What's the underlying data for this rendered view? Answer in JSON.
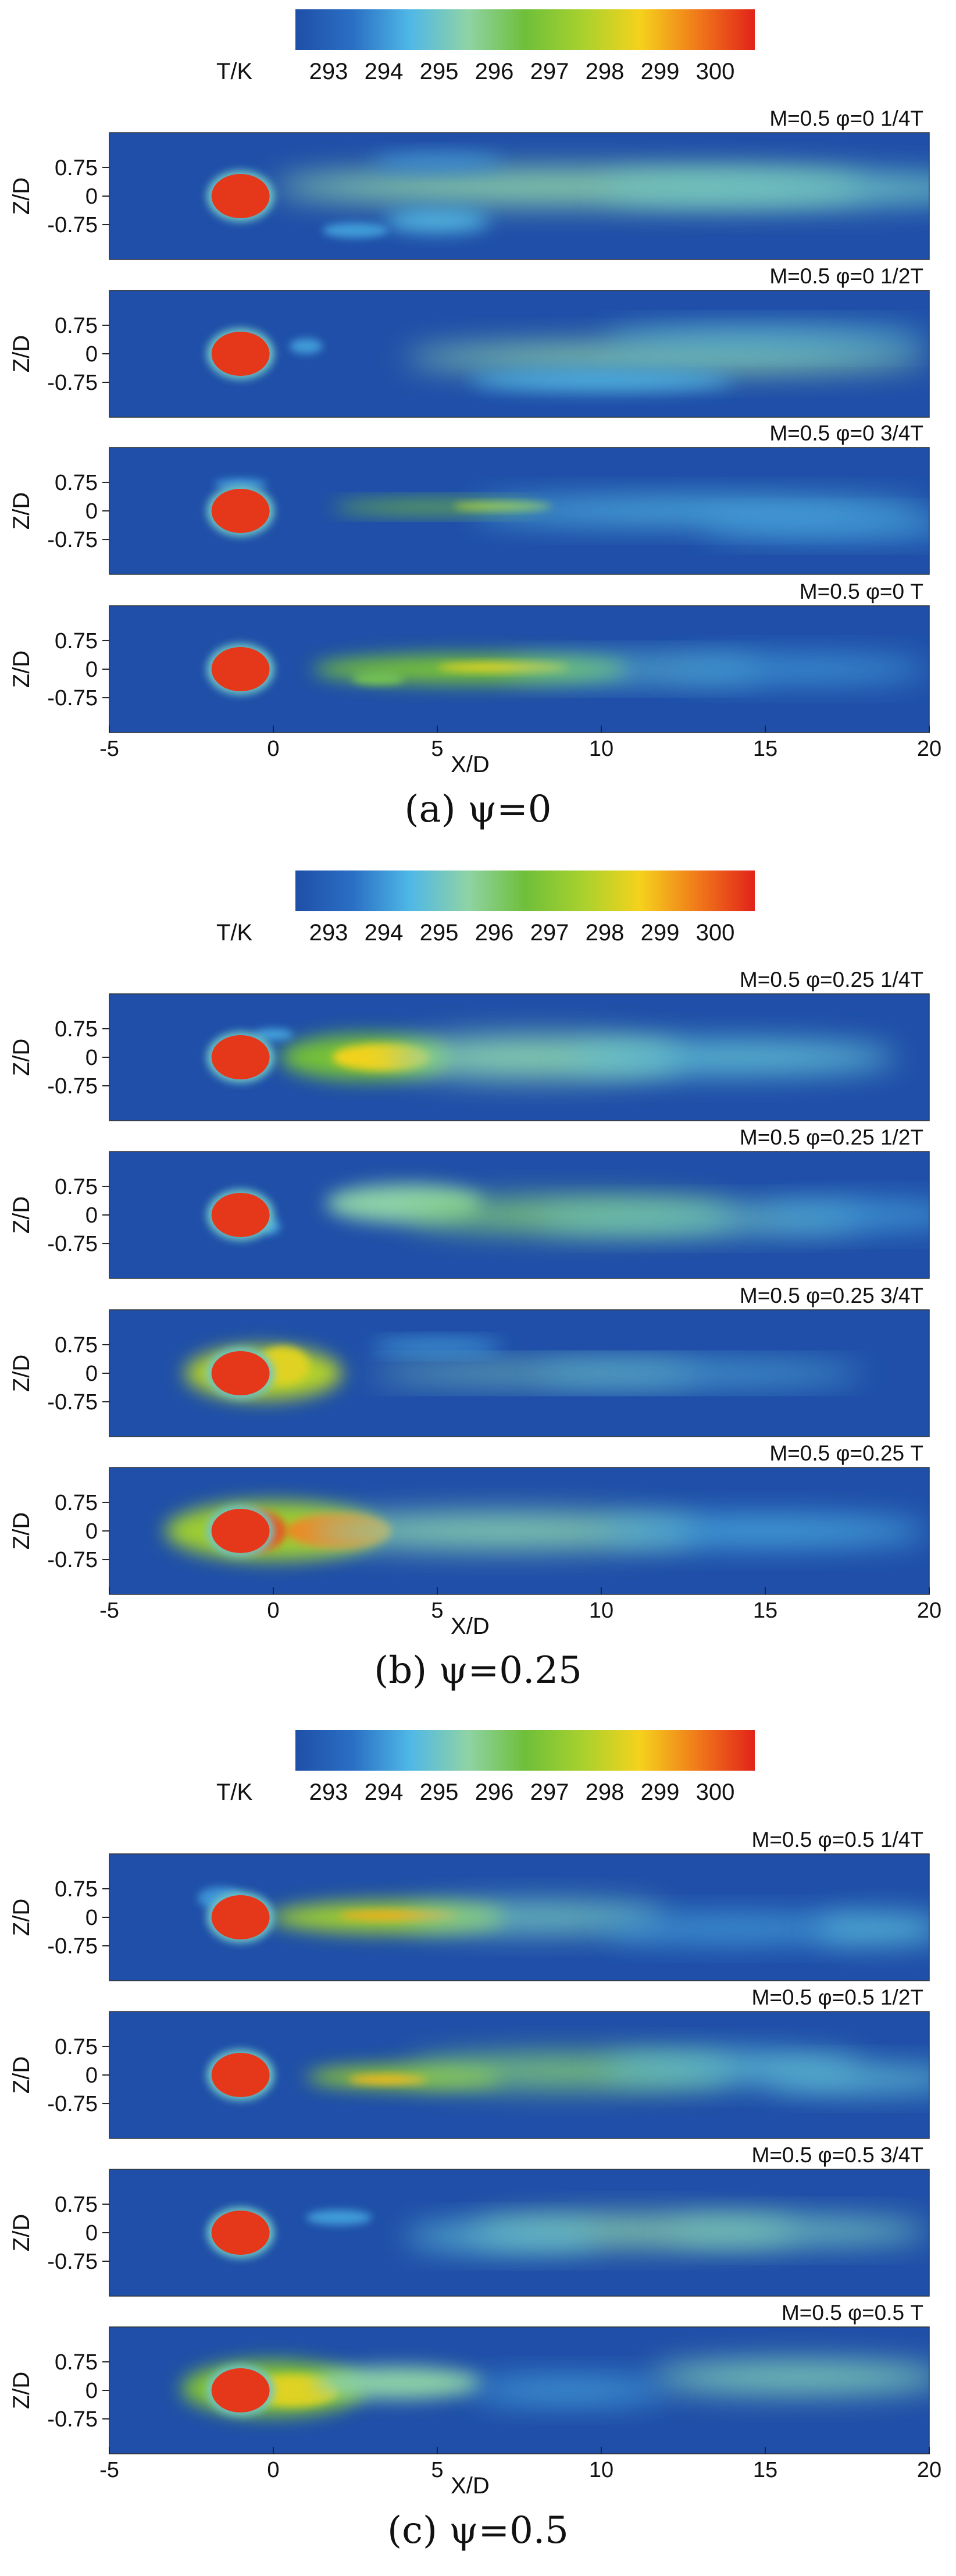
{
  "colors": {
    "background": "#ffffff",
    "colormap": [
      "#1f4fa8",
      "#2a6fc4",
      "#4fb8e6",
      "#8fd3a6",
      "#6fbf3a",
      "#a8d12e",
      "#f5d21c",
      "#f07a1a",
      "#e2231a"
    ]
  },
  "colorbar": {
    "label": "T/K",
    "ticks": [
      "293",
      "294",
      "295",
      "296",
      "297",
      "298",
      "299",
      "300"
    ]
  },
  "axes": {
    "ylabel": "Z/D",
    "xlabel": "X/D",
    "yticks": [
      "0.75",
      "0",
      "-0.75"
    ],
    "xticks": [
      "-5",
      "0",
      "5",
      "10",
      "15",
      "20"
    ]
  },
  "chart_data": [
    {
      "type": "heatmap",
      "caption": "(a) ψ=0",
      "colorbar_label": "T/K",
      "colorbar_range": [
        293,
        300
      ],
      "xlim": [
        -5,
        20
      ],
      "xlabel": "X/D",
      "ylabel": "Z/D",
      "panels": [
        {
          "label": "M=0.5 φ=0 1/4T"
        },
        {
          "label": "M=0.5 φ=0 1/2T"
        },
        {
          "label": "M=0.5 φ=0 3/4T"
        },
        {
          "label": "M=0.5 φ=0 T"
        }
      ]
    },
    {
      "type": "heatmap",
      "caption": "(b) ψ=0.25",
      "colorbar_label": "T/K",
      "colorbar_range": [
        293,
        300
      ],
      "xlim": [
        -5,
        20
      ],
      "xlabel": "X/D",
      "ylabel": "Z/D",
      "panels": [
        {
          "label": "M=0.5 φ=0.25 1/4T"
        },
        {
          "label": "M=0.5 φ=0.25 1/2T"
        },
        {
          "label": "M=0.5 φ=0.25 3/4T"
        },
        {
          "label": "M=0.5 φ=0.25 T"
        }
      ]
    },
    {
      "type": "heatmap",
      "caption": "(c) ψ=0.5",
      "colorbar_label": "T/K",
      "colorbar_range": [
        293,
        300
      ],
      "xlim": [
        -5,
        20
      ],
      "xlabel": "X/D",
      "ylabel": "Z/D",
      "panels": [
        {
          "label": "M=0.5 φ=0.5 1/4T"
        },
        {
          "label": "M=0.5 φ=0.5 1/2T"
        },
        {
          "label": "M=0.5 φ=0.5 3/4T"
        },
        {
          "label": "M=0.5 φ=0.5 T"
        }
      ]
    }
  ]
}
